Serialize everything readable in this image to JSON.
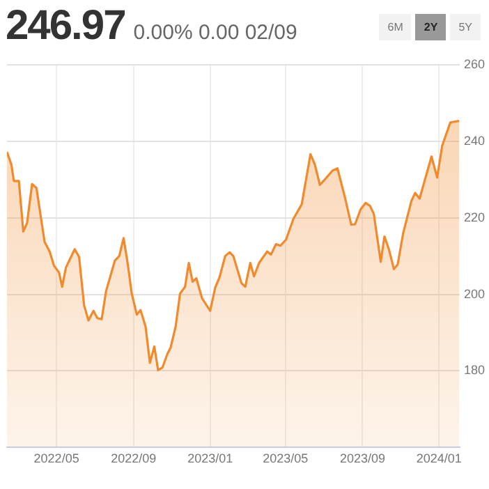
{
  "chart_data": {
    "type": "area",
    "title": "246.97",
    "subtitle": "0.00%  0.00  02/09",
    "annotations": [
      "6M",
      "2Y",
      "5Y"
    ],
    "x": [
      "2022-02-11",
      "2022-02-18",
      "2022-02-22",
      "2022-03-02",
      "2022-03-09",
      "2022-03-15",
      "2022-03-23",
      "2022-03-30",
      "2022-04-12",
      "2022-04-20",
      "2022-04-27",
      "2022-05-05",
      "2022-05-10",
      "2022-05-16",
      "2022-05-30",
      "2022-06-06",
      "2022-06-14",
      "2022-06-21",
      "2022-06-29",
      "2022-07-05",
      "2022-07-12",
      "2022-07-19",
      "2022-08-02",
      "2022-08-09",
      "2022-08-16",
      "2022-08-23",
      "2022-08-29",
      "2022-09-06",
      "2022-09-12",
      "2022-09-20",
      "2022-09-27",
      "2022-10-04",
      "2022-10-10",
      "2022-10-17",
      "2022-10-25",
      "2022-10-30",
      "2022-11-07",
      "2022-11-14",
      "2022-11-22",
      "2022-11-28",
      "2022-12-04",
      "2022-12-10",
      "2022-12-19",
      "2023-01-01",
      "2023-01-09",
      "2023-01-16",
      "2023-01-25",
      "2023-02-01",
      "2023-02-07",
      "2023-02-20",
      "2023-02-26",
      "2023-03-06",
      "2023-03-12",
      "2023-03-20",
      "2023-04-02",
      "2023-04-08",
      "2023-04-16",
      "2023-04-23",
      "2023-05-02",
      "2023-05-14",
      "2023-05-27",
      "2023-06-10",
      "2023-06-17",
      "2023-06-25",
      "2023-07-04",
      "2023-07-15",
      "2023-07-23",
      "2023-08-04",
      "2023-08-14",
      "2023-08-20",
      "2023-08-29",
      "2023-09-06",
      "2023-09-13",
      "2023-09-19",
      "2023-09-30",
      "2023-10-06",
      "2023-10-13",
      "2023-10-21",
      "2023-10-27",
      "2023-11-05",
      "2023-11-18",
      "2023-11-24",
      "2023-12-01",
      "2023-12-20",
      "2023-12-29",
      "2024-01-06",
      "2024-01-19",
      "2024-02-02"
    ],
    "series": [
      {
        "color": "#f08a2c",
        "values": [
          237.2,
          233.9,
          229.6,
          229.6,
          216.4,
          218.6,
          228.8,
          227.8,
          213.7,
          211.2,
          207.5,
          205.7,
          202.0,
          207.0,
          211.8,
          209.8,
          197.1,
          193.2,
          195.7,
          193.8,
          193.5,
          200.8,
          208.8,
          210.0,
          214.7,
          207.5,
          200.2,
          194.7,
          195.9,
          191.6,
          182.1,
          186.4,
          180.2,
          180.9,
          184.5,
          186.1,
          191.6,
          200.2,
          202.0,
          208.2,
          203.3,
          204.2,
          199.0,
          195.7,
          201.7,
          204.5,
          210.0,
          211.0,
          210.0,
          202.9,
          202.0,
          208.2,
          204.7,
          208.2,
          211.2,
          210.4,
          213.1,
          212.7,
          214.3,
          219.8,
          223.5,
          236.6,
          233.9,
          228.6,
          230.2,
          232.3,
          232.9,
          225.3,
          218.2,
          218.3,
          222.2,
          223.9,
          223.1,
          221.0,
          208.5,
          215.1,
          211.8,
          206.6,
          207.8,
          216.1,
          224.4,
          226.5,
          225.0,
          236.0,
          230.5,
          238.8,
          244.9,
          245.3
        ]
      }
    ],
    "xlim": [
      "2022-02-11",
      "2024-02-03"
    ],
    "xticks": [
      {
        "value": "2022-05",
        "label": "2022/05"
      },
      {
        "value": "2022-09",
        "label": "2022/09"
      },
      {
        "value": "2023-01",
        "label": "2023/01"
      },
      {
        "value": "2023-05",
        "label": "2023/05"
      },
      {
        "value": "2023-09",
        "label": "2023/09"
      },
      {
        "value": "2024-01",
        "label": "2024/01"
      }
    ],
    "ylim": [
      160,
      260
    ],
    "yticks": [
      180,
      200,
      220,
      240,
      260
    ],
    "grid": true
  }
}
